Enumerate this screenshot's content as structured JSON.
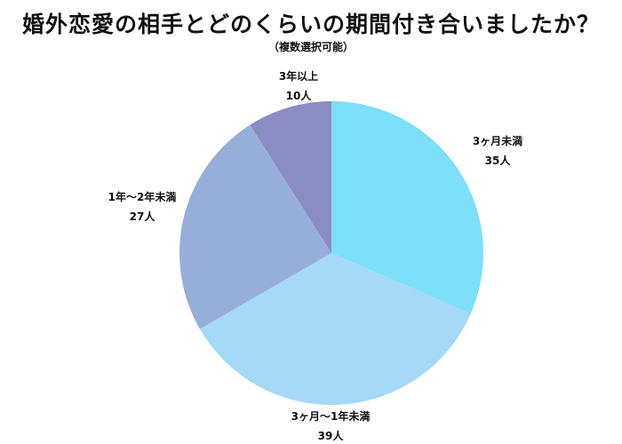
{
  "chart_data": {
    "type": "pie",
    "title": "婚外恋愛の相手とどのくらいの期間付き合いましたか？",
    "subtitle": "（複数選択可能）",
    "unit": "人",
    "start_angle_deg": 0,
    "direction": "clockwise",
    "slices": [
      {
        "label": "3ヶ月未満",
        "value": 35,
        "value_label": "35人",
        "color": "#7ddff8"
      },
      {
        "label": "3ヶ月〜1年未満",
        "value": 39,
        "value_label": "39人",
        "color": "#a6d8f7"
      },
      {
        "label": "1年〜2年未満",
        "value": 27,
        "value_label": "27人",
        "color": "#97afd8"
      },
      {
        "label": "3年以上",
        "value": 10,
        "value_label": "10人",
        "color": "#8b8cc3"
      }
    ]
  }
}
